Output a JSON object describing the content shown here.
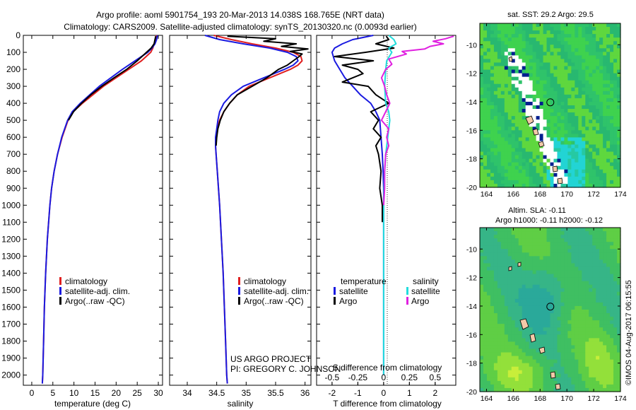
{
  "header": {
    "title_line1": "Argo profile: aoml 5901754_193 20-Mar-2013 14.038S 168.765E (NRT data)",
    "title_line2": "Climatology: CARS2009. Satellite-adjusted climatology: synTS_20130320.nc (0.0093d earlier)"
  },
  "colors": {
    "climatology": "#e02020",
    "satellite": "#1a1ae0",
    "argo": "#000000",
    "sat_salinity": "#22dddd",
    "argo_salinity": "#e020e0",
    "land": "#f3c9a8"
  },
  "depth_axis": {
    "ticks": [
      0,
      100,
      200,
      300,
      400,
      500,
      600,
      700,
      800,
      900,
      1000,
      1100,
      1200,
      1300,
      1400,
      1500,
      1600,
      1700,
      1800,
      1900,
      2000
    ],
    "range": [
      0,
      2060
    ]
  },
  "legend": {
    "climatology": "climatology",
    "satellite": "satellite-adj. clim.",
    "argo": "Argo(..raw -QC)",
    "diff_temperature": "temperature",
    "diff_salinity": "salinity",
    "diff_satellite": "satellite",
    "diff_argo": "Argo"
  },
  "credits": {
    "project": "US ARGO PROJECT",
    "pi": "PI: GREGORY C. JOHNSON",
    "watermark": "©IMOS 04-Aug-2017 06:15:55"
  },
  "chart_data": [
    {
      "type": "line",
      "id": "temperature",
      "xlabel": "temperature (deg C)",
      "ylabel": "",
      "xlim": [
        -2,
        31
      ],
      "ylim": [
        2060,
        0
      ],
      "xticks": [
        0,
        5,
        10,
        15,
        20,
        25,
        30
      ],
      "xtick_labels": [
        "0",
        "5",
        "10",
        "15",
        "20",
        "25",
        "30"
      ],
      "series": [
        {
          "name": "climatology",
          "color_key": "climatology",
          "depth": [
            0,
            25,
            50,
            75,
            100,
            150,
            200,
            300,
            400,
            450,
            500,
            600,
            700,
            800,
            900,
            1000,
            1200,
            1400,
            1600,
            1800,
            2000,
            2050
          ],
          "values": [
            29.5,
            29.3,
            29,
            28.7,
            28.2,
            26,
            23,
            17,
            12,
            9.8,
            8.6,
            7.2,
            6.1,
            5.3,
            4.7,
            4.3,
            3.7,
            3.3,
            3,
            2.8,
            2.6,
            2.5
          ]
        },
        {
          "name": "satellite-adj. clim.",
          "color_key": "satellite",
          "depth": [
            0,
            25,
            50,
            75,
            100,
            150,
            200,
            300,
            400,
            450,
            500,
            600,
            700,
            800,
            900,
            1000,
            1200,
            1400,
            1600,
            1800,
            2000,
            2050
          ],
          "values": [
            29.8,
            29.6,
            29.2,
            28.5,
            27.5,
            24.5,
            21.5,
            16,
            11.5,
            9.6,
            8.5,
            7.1,
            6.1,
            5.3,
            4.7,
            4.3,
            3.7,
            3.3,
            3,
            2.8,
            2.6,
            2.5
          ]
        },
        {
          "name": "Argo(..raw -QC)",
          "color_key": "argo",
          "depth": [
            5,
            25,
            50,
            75,
            100,
            150,
            200,
            250,
            300,
            350,
            400,
            450,
            500
          ],
          "values": [
            29.4,
            29.2,
            29,
            28.3,
            27.2,
            25,
            22.5,
            19.5,
            16.6,
            14,
            11.8,
            9.9,
            8.7
          ]
        }
      ]
    },
    {
      "type": "line",
      "id": "salinity",
      "xlabel": "salinity",
      "ylabel": "",
      "xlim": [
        33.7,
        36.1
      ],
      "ylim": [
        2060,
        0
      ],
      "xticks": [
        34,
        34.5,
        35,
        35.5,
        36
      ],
      "xtick_labels": [
        "34",
        "34.5",
        "35",
        "35.5",
        "36"
      ],
      "series": [
        {
          "name": "climatology",
          "color_key": "climatology",
          "depth": [
            0,
            25,
            50,
            75,
            100,
            125,
            150,
            175,
            200,
            250,
            300,
            350,
            400,
            450,
            500,
            550,
            600,
            650,
            700,
            800,
            1000,
            1200,
            1400,
            1600,
            1800,
            2000,
            2050
          ],
          "values": [
            34.45,
            34.75,
            35.1,
            35.5,
            35.8,
            35.93,
            35.95,
            35.88,
            35.75,
            35.4,
            35.05,
            34.85,
            34.72,
            34.62,
            34.55,
            34.51,
            34.49,
            34.48,
            34.49,
            34.51,
            34.55,
            34.58,
            34.61,
            34.63,
            34.65,
            34.67,
            34.68
          ]
        },
        {
          "name": "satellite-adj. clim.",
          "color_key": "satellite",
          "depth": [
            0,
            25,
            50,
            75,
            100,
            125,
            150,
            175,
            200,
            250,
            300,
            350,
            400,
            450,
            500,
            550,
            600,
            650,
            700,
            800,
            1000,
            1200,
            1400,
            1600,
            1800,
            2000,
            2050
          ],
          "values": [
            34.3,
            34.55,
            34.95,
            35.4,
            35.7,
            35.85,
            35.88,
            35.8,
            35.65,
            35.3,
            34.95,
            34.75,
            34.62,
            34.55,
            34.52,
            34.5,
            34.48,
            34.48,
            34.49,
            34.51,
            34.55,
            34.58,
            34.61,
            34.63,
            34.65,
            34.67,
            34.68
          ]
        },
        {
          "name": "Argo(..raw -QC)",
          "color_key": "argo",
          "depth": [
            5,
            20,
            35,
            50,
            65,
            80,
            95,
            110,
            125,
            150,
            175,
            200,
            250,
            300,
            350,
            400,
            450,
            500,
            550,
            600,
            650
          ],
          "values": [
            34.68,
            35.5,
            35.3,
            35.85,
            35.6,
            36.05,
            35.75,
            35.95,
            35.9,
            35.8,
            35.7,
            35.55,
            35.35,
            35.1,
            34.85,
            34.72,
            34.62,
            34.56,
            34.52,
            34.5,
            34.49
          ]
        }
      ]
    },
    {
      "type": "line",
      "id": "difference",
      "xlabel": "T difference from climatology",
      "x2label": "S difference from climatology",
      "xlim": [
        -2.6,
        2.8
      ],
      "ylim": [
        2060,
        0
      ],
      "xticks": [
        -2,
        -1,
        0,
        1,
        2
      ],
      "xtick_labels": [
        "-2",
        "-1",
        "0",
        "1",
        "2"
      ],
      "x2lim": [
        -0.65,
        0.7
      ],
      "x2ticks": [
        -0.5,
        -0.25,
        0,
        0.25,
        0.5
      ],
      "x2tick_labels": [
        "-0.5",
        "-0.25",
        "0",
        "0.25",
        "0.5"
      ],
      "series": [
        {
          "name": "temperature satellite",
          "color_key": "satellite",
          "axis": "T",
          "depth": [
            0,
            25,
            50,
            75,
            100,
            150,
            200,
            250,
            300,
            350,
            400,
            450,
            500,
            600,
            700,
            800,
            900,
            1000,
            1200,
            1600,
            2000
          ],
          "values": [
            -0.4,
            -1.2,
            -1.6,
            -1.9,
            -2,
            -1.9,
            -1.7,
            -1.5,
            -1.2,
            -0.9,
            -0.5,
            -0.3,
            -0.15,
            -0.1,
            -0.05,
            -0.02,
            0,
            0,
            0,
            0,
            0
          ]
        },
        {
          "name": "temperature Argo",
          "color_key": "argo",
          "axis": "T",
          "depth": [
            5,
            25,
            50,
            75,
            100,
            125,
            150,
            175,
            200,
            225,
            250,
            275,
            300,
            350,
            400,
            450,
            500,
            550,
            600,
            650,
            700,
            800,
            900,
            1000,
            1100
          ],
          "values": [
            0.1,
            0.2,
            -0.3,
            0.4,
            -0.7,
            -1.9,
            -0.4,
            -1.6,
            -1.0,
            -0.8,
            -1.2,
            -1.6,
            -0.6,
            -0.3,
            0.2,
            -0.5,
            -0.2,
            -0.4,
            -0.1,
            -0.3,
            -0.2,
            -0.1,
            -0.15,
            -0.05,
            -0.05
          ]
        },
        {
          "name": "salinity satellite",
          "color_key": "sat_salinity",
          "axis": "S",
          "depth": [
            0,
            25,
            50,
            75,
            100,
            150,
            200,
            300,
            400,
            450,
            500,
            600,
            700,
            800,
            1000,
            1200,
            1600,
            2000
          ],
          "values": [
            0.05,
            0.1,
            0.12,
            0.05,
            0.08,
            0.03,
            0.02,
            0.01,
            0.02,
            0.05,
            0.06,
            0.04,
            0.02,
            0.01,
            0,
            0,
            0,
            0
          ]
        },
        {
          "name": "salinity Argo",
          "color_key": "argo_salinity",
          "axis": "S",
          "depth": [
            5,
            20,
            35,
            50,
            65,
            80,
            95,
            110,
            140,
            170,
            200,
            250,
            300,
            350,
            400,
            450,
            500,
            550,
            600,
            650,
            700,
            800,
            900,
            1000
          ],
          "values": [
            0.68,
            0.6,
            0.48,
            0.58,
            0.45,
            0.4,
            0.18,
            0.22,
            0.05,
            0.08,
            0.02,
            -0.02,
            0.01,
            0.03,
            0.06,
            0.02,
            -0.02,
            0.05,
            0.03,
            0.05,
            0.02,
            0.01,
            0.01,
            0
          ]
        }
      ]
    },
    {
      "type": "heatmap",
      "id": "sst_map",
      "title": "sat. SST: 29.2 Argo: 29.5",
      "xlim": [
        163.5,
        174
      ],
      "ylim": [
        -20,
        -8.5
      ],
      "xticks": [
        164,
        166,
        168,
        170,
        172,
        174
      ],
      "xtick_labels": [
        "164",
        "166",
        "168",
        "170",
        "172",
        "174"
      ],
      "yticks": [
        -10,
        -12,
        -14,
        -16,
        -18,
        -20
      ],
      "ytick_labels": [
        "-10",
        "-12",
        "-14",
        "-16",
        "-18",
        "-20"
      ],
      "float_position": [
        168.765,
        -14.038
      ]
    },
    {
      "type": "heatmap",
      "id": "sla_map",
      "title_line1": "Altim. SLA: -0.11",
      "title_line2": "Argo h1000: -0.11 h2000: -0.12",
      "xlim": [
        163.5,
        174
      ],
      "ylim": [
        -20,
        -8.5
      ],
      "xticks": [
        164,
        166,
        168,
        170,
        172,
        174
      ],
      "xtick_labels": [
        "164",
        "166",
        "168",
        "170",
        "172",
        "174"
      ],
      "yticks": [
        -10,
        -12,
        -14,
        -16,
        -18,
        -20
      ],
      "ytick_labels": [
        "-10",
        "-12",
        "-14",
        "-16",
        "-18",
        "-20"
      ],
      "float_position": [
        168.765,
        -14.038
      ]
    }
  ]
}
